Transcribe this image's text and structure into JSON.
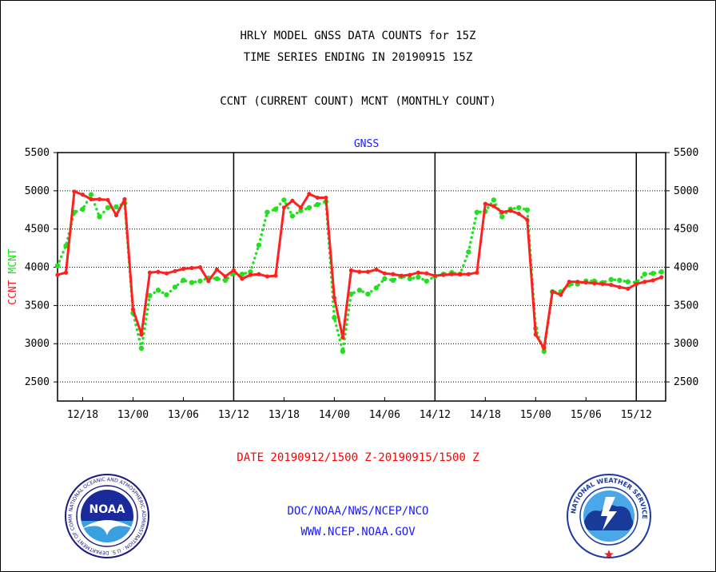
{
  "header": {
    "title_line1": "HRLY MODEL GNSS DATA COUNTS for 15Z",
    "title_line2": "TIME SERIES ENDING IN 20190915 15Z",
    "subtitle": "CCNT (CURRENT COUNT) MCNT (MONTHLY COUNT)"
  },
  "footer": {
    "date_range": "DATE 20190912/1500 Z-20190915/1500 Z",
    "org": "DOC/NOAA/NWS/NCEP/NCO",
    "url": "WWW.NCEP.NOAA.GOV"
  },
  "logos": {
    "noaa_text": "NOAA",
    "noaa_ring_text": "NATIONAL OCEANIC AND ATMOSPHERIC ADMINISTRATION · U.S. DEPARTMENT OF COMMERCE ·",
    "nws_ring_text": "NATIONAL WEATHER SERVICE"
  },
  "colors": {
    "ccnt": "#ff2020",
    "mcnt": "#20e020",
    "panel_label": "#1a1aff",
    "footer_blue": "#1a1aff",
    "date_red": "#ff0000"
  },
  "chart_data": {
    "type": "line",
    "panel_label": "GNSS",
    "ylabel_ccnt": "CCNT",
    "ylabel_mcnt": "MCNT",
    "ylim": [
      2250,
      5500
    ],
    "yticks": [
      2500,
      3000,
      3500,
      4000,
      4500,
      5000,
      5500
    ],
    "xlim": [
      15,
      87.5
    ],
    "x_units": "hours since 20190912/0000Z",
    "xticks": [
      {
        "x": 18,
        "label": "12/18"
      },
      {
        "x": 24,
        "label": "13/00"
      },
      {
        "x": 30,
        "label": "13/06"
      },
      {
        "x": 36,
        "label": "13/12"
      },
      {
        "x": 42,
        "label": "13/18"
      },
      {
        "x": 48,
        "label": "14/00"
      },
      {
        "x": 54,
        "label": "14/06"
      },
      {
        "x": 60,
        "label": "14/12"
      },
      {
        "x": 66,
        "label": "14/18"
      },
      {
        "x": 72,
        "label": "15/00"
      },
      {
        "x": 78,
        "label": "15/06"
      },
      {
        "x": 84,
        "label": "15/12"
      }
    ],
    "day_boundaries": [
      36,
      60,
      84
    ],
    "grid": true,
    "series": [
      {
        "name": "CCNT",
        "style": "solid",
        "x": [
          15,
          16,
          17,
          18,
          19,
          20,
          21,
          22,
          23,
          24,
          25,
          26,
          27,
          28,
          29,
          30,
          31,
          32,
          33,
          34,
          35,
          36,
          37,
          38,
          39,
          40,
          41,
          42,
          43,
          44,
          45,
          46,
          47,
          48,
          49,
          50,
          51,
          52,
          53,
          54,
          55,
          56,
          57,
          58,
          59,
          60,
          61,
          62,
          63,
          64,
          65,
          66,
          67,
          68,
          69,
          70,
          71,
          72,
          73,
          74,
          75,
          76,
          77,
          78,
          79,
          80,
          81,
          82,
          83,
          84,
          85,
          86,
          87
        ],
        "values": [
          3900,
          3930,
          4990,
          4950,
          4890,
          4890,
          4880,
          4680,
          4890,
          3450,
          3120,
          3930,
          3940,
          3920,
          3950,
          3980,
          3990,
          4000,
          3820,
          3970,
          3880,
          3960,
          3850,
          3900,
          3910,
          3880,
          3890,
          4780,
          4870,
          4780,
          4960,
          4910,
          4910,
          3600,
          3080,
          3960,
          3940,
          3940,
          3970,
          3920,
          3910,
          3890,
          3900,
          3930,
          3920,
          3890,
          3900,
          3910,
          3910,
          3910,
          3930,
          4830,
          4800,
          4720,
          4740,
          4700,
          4620,
          3120,
          2940,
          3680,
          3640,
          3810,
          3810,
          3800,
          3790,
          3780,
          3770,
          3740,
          3720,
          3780,
          3810,
          3830,
          3870
        ]
      },
      {
        "name": "MCNT",
        "style": "dotted",
        "x": [
          15,
          16,
          17,
          18,
          19,
          20,
          21,
          22,
          23,
          24,
          25,
          26,
          27,
          28,
          29,
          30,
          31,
          32,
          33,
          34,
          35,
          36,
          37,
          38,
          39,
          40,
          41,
          42,
          43,
          44,
          45,
          46,
          47,
          48,
          49,
          50,
          51,
          52,
          53,
          54,
          55,
          56,
          57,
          58,
          59,
          60,
          61,
          62,
          63,
          64,
          65,
          66,
          67,
          68,
          69,
          70,
          71,
          72,
          73,
          74,
          75,
          76,
          77,
          78,
          79,
          80,
          81,
          82,
          83,
          84,
          85,
          86,
          87
        ],
        "values": [
          4020,
          4280,
          4720,
          4760,
          4950,
          4660,
          4780,
          4790,
          4840,
          3400,
          2940,
          3630,
          3700,
          3640,
          3740,
          3830,
          3800,
          3820,
          3860,
          3850,
          3830,
          3920,
          3910,
          3940,
          4290,
          4720,
          4760,
          4880,
          4670,
          4740,
          4780,
          4820,
          4860,
          3340,
          2900,
          3650,
          3700,
          3650,
          3730,
          3850,
          3830,
          3880,
          3850,
          3870,
          3820,
          3880,
          3910,
          3930,
          3910,
          4200,
          4720,
          4730,
          4880,
          4660,
          4760,
          4780,
          4750,
          3200,
          2900,
          3680,
          3680,
          3770,
          3780,
          3820,
          3820,
          3800,
          3840,
          3830,
          3810,
          3800,
          3910,
          3920,
          3940
        ]
      }
    ]
  }
}
